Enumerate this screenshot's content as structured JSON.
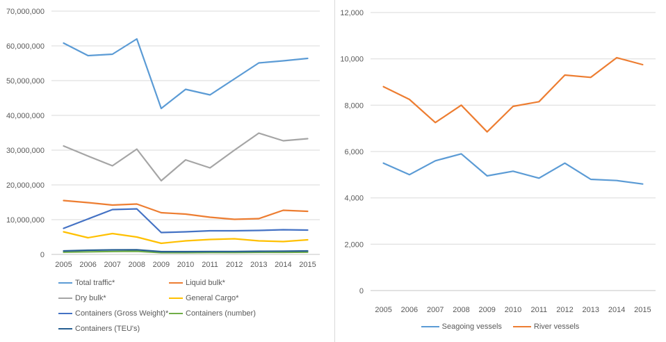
{
  "page": {
    "background": "#FFFFFF"
  },
  "styles": {
    "gridline_color": "#D9D9D9",
    "axis_line_color": "#C6C6C6",
    "tick_label_color": "#595959",
    "legend_label_color": "#595959"
  },
  "chart_data": [
    {
      "id": "cargo-traffic",
      "type": "line",
      "title": "",
      "xlabel": "",
      "ylabel": "",
      "grid": true,
      "legend_position": "bottom-left, two columns",
      "ylim": [
        0,
        70000000
      ],
      "ytick_step": 10000000,
      "ytick_labels": [
        "0",
        "10,000,000",
        "20,000,000",
        "30,000,000",
        "40,000,000",
        "50,000,000",
        "60,000,000",
        "70,000,000"
      ],
      "x": [
        "2005",
        "2006",
        "2007",
        "2008",
        "2009",
        "2010",
        "2011",
        "2012",
        "2013",
        "2014",
        "2015"
      ],
      "series": [
        {
          "name": "Total traffic*",
          "color": "#5B9BD5",
          "values": [
            60800000,
            57200000,
            57600000,
            62000000,
            42000000,
            47500000,
            45900000,
            50500000,
            55100000,
            55700000,
            56400000
          ]
        },
        {
          "name": "Liquid bulk*",
          "color": "#ED7D31",
          "values": [
            15500000,
            14900000,
            14200000,
            14500000,
            12000000,
            11600000,
            10700000,
            10100000,
            10300000,
            12700000,
            12400000
          ]
        },
        {
          "name": "Dry bulk*",
          "color": "#A5A5A5",
          "values": [
            31200000,
            28300000,
            25500000,
            30300000,
            21200000,
            27200000,
            24900000,
            30000000,
            34900000,
            32700000,
            33300000
          ]
        },
        {
          "name": "General Cargo*",
          "color": "#FFC000",
          "values": [
            6500000,
            4800000,
            6000000,
            5000000,
            3200000,
            3900000,
            4300000,
            4500000,
            3900000,
            3700000,
            4200000
          ]
        },
        {
          "name": "Containers (Gross Weight)*",
          "color": "#4472C4",
          "values": [
            7500000,
            10200000,
            12900000,
            13100000,
            6300000,
            6500000,
            6800000,
            6800000,
            6900000,
            7100000,
            7000000
          ]
        },
        {
          "name": "Containers (number)",
          "color": "#70AD47",
          "values": [
            650000,
            750000,
            850000,
            900000,
            500000,
            500000,
            550000,
            550000,
            600000,
            600000,
            650000
          ]
        },
        {
          "name": "Containers (TEU's)",
          "color": "#255E91",
          "values": [
            1000000,
            1200000,
            1300000,
            1350000,
            800000,
            800000,
            850000,
            850000,
            900000,
            950000,
            1000000
          ]
        }
      ]
    },
    {
      "id": "vessels",
      "type": "line",
      "title": "",
      "xlabel": "",
      "ylabel": "",
      "grid": true,
      "legend_position": "bottom-center",
      "ylim": [
        0,
        12000
      ],
      "ytick_step": 2000,
      "ytick_labels": [
        "0",
        "2,000",
        "4,000",
        "6,000",
        "8,000",
        "10,000",
        "12,000"
      ],
      "x": [
        "2005",
        "2006",
        "2007",
        "2008",
        "2009",
        "2010",
        "2011",
        "2012",
        "2013",
        "2014",
        "2015"
      ],
      "series": [
        {
          "name": "Seagoing vessels",
          "color": "#5B9BD5",
          "values": [
            5500,
            5000,
            5600,
            5900,
            4950,
            5150,
            4850,
            5500,
            4800,
            4750,
            4600
          ]
        },
        {
          "name": "River vessels",
          "color": "#ED7D31",
          "values": [
            8800,
            8250,
            7250,
            8000,
            6850,
            7950,
            8150,
            9300,
            9200,
            10050,
            9750
          ]
        }
      ]
    }
  ]
}
